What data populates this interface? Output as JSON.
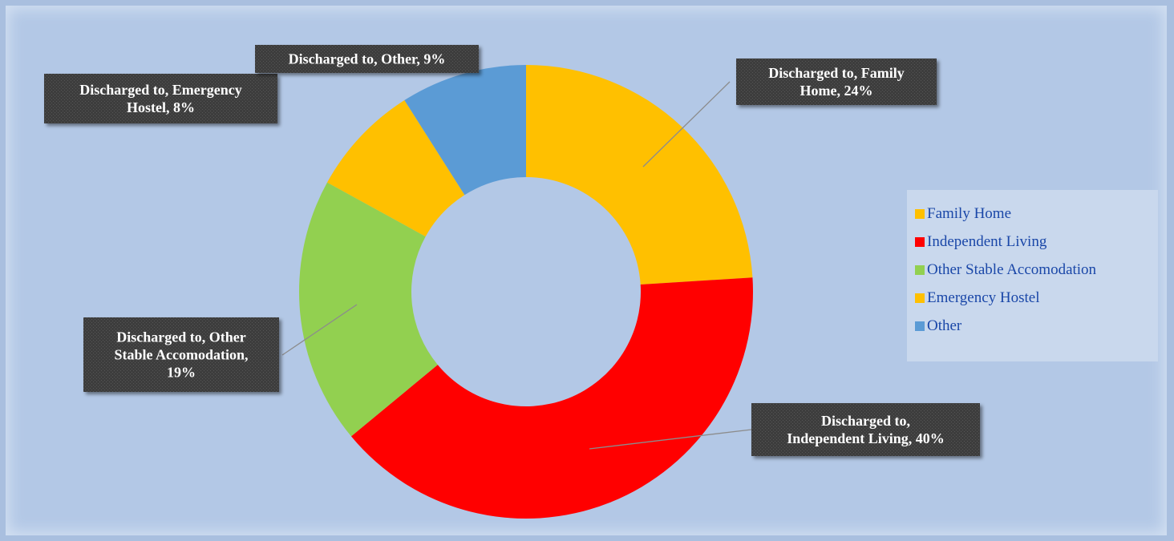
{
  "chart_data": {
    "type": "pie",
    "donut": true,
    "title": "",
    "legend_position": "right",
    "slices": [
      {
        "name": "Family Home",
        "value": 24,
        "color": "#ffc000",
        "label": [
          "Discharged to, Family",
          "Home, 24%"
        ]
      },
      {
        "name": "Independent Living",
        "value": 40,
        "color": "#ff0000",
        "label": [
          "Discharged to,",
          "Independent Living, 40%"
        ]
      },
      {
        "name": "Other Stable Accomodation",
        "value": 19,
        "color": "#92d050",
        "label": [
          "Discharged to, Other",
          "Stable Accomodation,",
          "19%"
        ]
      },
      {
        "name": "Emergency Hostel",
        "value": 8,
        "color": "#ffc000",
        "label": [
          "Discharged to, Emergency",
          "Hostel, 8%"
        ]
      },
      {
        "name": "Other",
        "value": 9,
        "color": "#5b9bd5",
        "label": [
          "Discharged to, Other, 9%"
        ]
      }
    ]
  }
}
